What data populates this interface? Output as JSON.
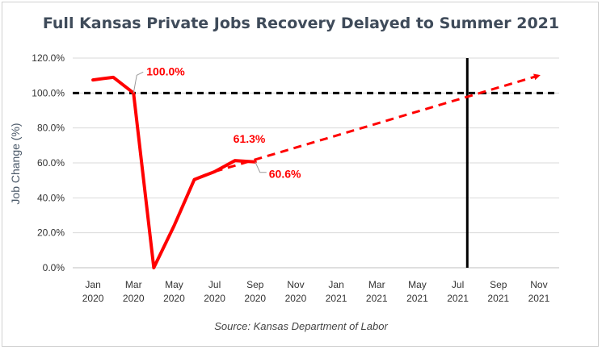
{
  "chart_data": {
    "type": "line",
    "title": "Full Kansas Private Jobs Recovery Delayed to Summer 2021",
    "ylabel": "Job Change (%)",
    "xlabel": "",
    "source": "Source: Kansas Department of Labor",
    "ylim": [
      0,
      120
    ],
    "y_ticks": [
      "0.0%",
      "20.0%",
      "40.0%",
      "60.0%",
      "80.0%",
      "100.0%",
      "120.0%"
    ],
    "x_ticks": [
      {
        "month": "Jan",
        "year": "2020"
      },
      {
        "month": "Mar",
        "year": "2020"
      },
      {
        "month": "May",
        "year": "2020"
      },
      {
        "month": "Jul",
        "year": "2020"
      },
      {
        "month": "Sep",
        "year": "2020"
      },
      {
        "month": "Nov",
        "year": "2020"
      },
      {
        "month": "Jan",
        "year": "2021"
      },
      {
        "month": "Mar",
        "year": "2021"
      },
      {
        "month": "May",
        "year": "2021"
      },
      {
        "month": "Jul",
        "year": "2021"
      },
      {
        "month": "Sep",
        "year": "2021"
      },
      {
        "month": "Nov",
        "year": "2021"
      }
    ],
    "grid": true,
    "series": [
      {
        "style": "solid",
        "color": "#ff0000",
        "x": [
          "2020-01",
          "2020-02",
          "2020-03",
          "2020-04",
          "2020-05",
          "2020-06",
          "2020-07",
          "2020-08",
          "2020-09"
        ],
        "values": [
          107.5,
          109.0,
          100.0,
          0.0,
          24.0,
          50.5,
          55.0,
          61.3,
          60.6
        ]
      },
      {
        "style": "dashed-arrow",
        "color": "#ff0000",
        "x": [
          "2020-07",
          "2021-11"
        ],
        "values": [
          55.0,
          110.0
        ]
      }
    ],
    "reference_lines": [
      {
        "orientation": "horizontal",
        "style": "dashed",
        "color": "#000000",
        "value": 100
      },
      {
        "orientation": "vertical",
        "style": "solid",
        "color": "#000000",
        "value": "2021-07-15"
      }
    ],
    "annotations": [
      {
        "text": "100.0%",
        "x": "2020-03",
        "y": 100.0,
        "color": "#ff0000"
      },
      {
        "text": "61.3%",
        "x": "2020-08",
        "y": 61.3,
        "color": "#ff0000"
      },
      {
        "text": "60.6%",
        "x": "2020-09",
        "y": 60.6,
        "color": "#ff0000"
      }
    ]
  }
}
